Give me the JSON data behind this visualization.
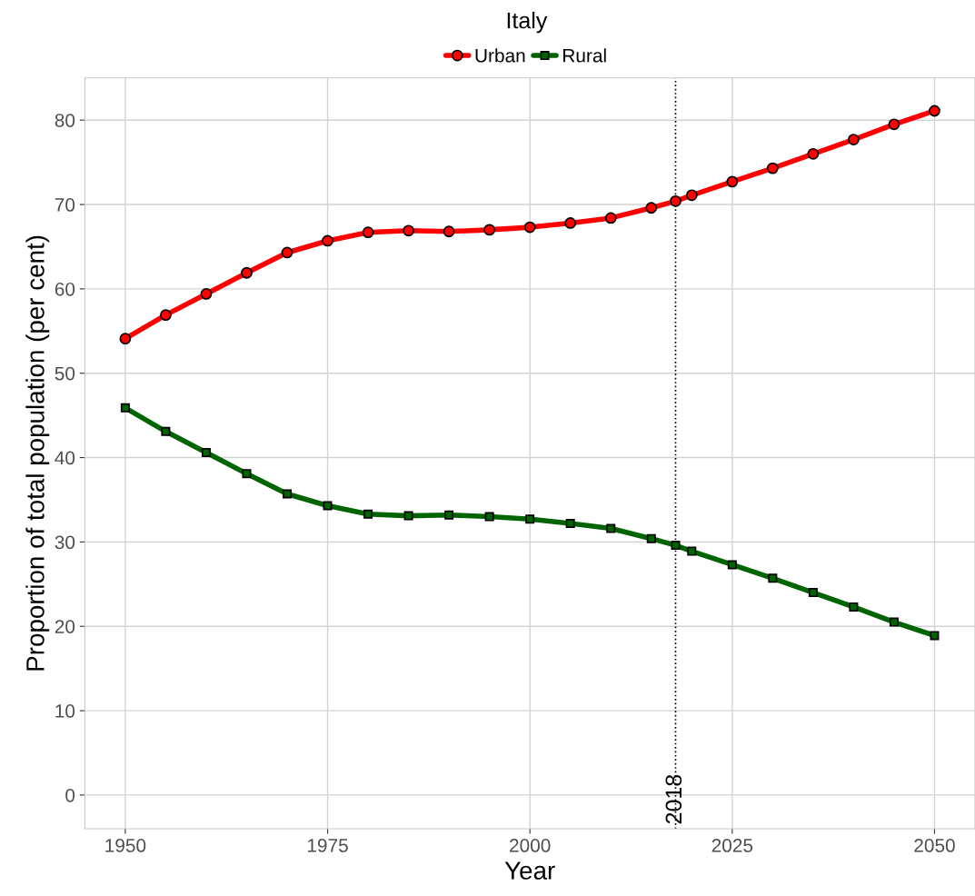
{
  "chart_data": {
    "type": "line",
    "title": "Italy",
    "xlabel": "Year",
    "ylabel": "Proportion of total population (per cent)",
    "x": [
      1950,
      1955,
      1960,
      1965,
      1970,
      1975,
      1980,
      1985,
      1990,
      1995,
      2000,
      2005,
      2010,
      2015,
      2018,
      2020,
      2025,
      2030,
      2035,
      2040,
      2045,
      2050
    ],
    "series": [
      {
        "name": "Urban",
        "color": "#ff0000",
        "marker": "circle",
        "values": [
          54.1,
          56.9,
          59.4,
          61.9,
          64.3,
          65.7,
          66.7,
          66.9,
          66.8,
          67.0,
          67.3,
          67.8,
          68.4,
          69.6,
          70.4,
          71.1,
          72.7,
          74.3,
          76.0,
          77.7,
          79.5,
          81.1
        ]
      },
      {
        "name": "Rural",
        "color": "#006400",
        "marker": "square",
        "values": [
          45.9,
          43.1,
          40.6,
          38.1,
          35.7,
          34.3,
          33.3,
          33.1,
          33.2,
          33.0,
          32.7,
          32.2,
          31.6,
          30.4,
          29.6,
          28.9,
          27.3,
          25.7,
          24.0,
          22.3,
          20.5,
          18.9
        ]
      }
    ],
    "xlim": [
      1945,
      2055
    ],
    "xticks": [
      1950,
      1975,
      2000,
      2025,
      2050
    ],
    "ylim": [
      -4,
      85
    ],
    "yticks": [
      0,
      10,
      20,
      30,
      40,
      50,
      60,
      70,
      80
    ],
    "ref_lines": [
      {
        "axis": "x",
        "value": 2018,
        "label": "2018",
        "color": "#000000",
        "line_style": "dotted"
      }
    ],
    "grid": true,
    "legend": "top"
  }
}
